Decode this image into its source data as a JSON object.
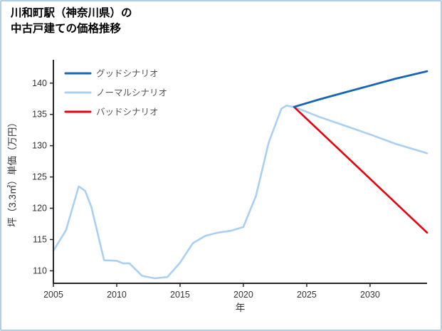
{
  "title": {
    "line1": "川和町駅（神奈川県）の",
    "line2": "中古戸建ての価格推移"
  },
  "chart_data": {
    "type": "line",
    "title": "川和町駅（神奈川県）の中古戸建ての価格推移",
    "xlabel": "年",
    "ylabel": "坪（3.3㎡）単価（万円）",
    "xlim": [
      2005,
      2034.5
    ],
    "ylim": [
      108,
      143.5
    ],
    "xticks": [
      2005,
      2010,
      2015,
      2020,
      2025,
      2030
    ],
    "yticks": [
      110,
      115,
      120,
      125,
      130,
      135,
      140
    ],
    "grid": false,
    "legend": {
      "position": "upper-left",
      "order": [
        "グッドシナリオ",
        "ノーマルシナリオ",
        "バッドシナリオ"
      ]
    },
    "axis_color": "#262626",
    "tick_label_color": "#333333",
    "legend_text_color": "#555555",
    "series": [
      {
        "name": "ノーマルシナリオ",
        "color": "#a9d0f3",
        "width": 2.6,
        "x": [
          2005,
          2006,
          2007,
          2007.5,
          2008,
          2009,
          2010,
          2010.5,
          2011,
          2012,
          2013,
          2014,
          2015,
          2016,
          2017,
          2018,
          2019,
          2020,
          2021,
          2022,
          2023,
          2023.4,
          2024,
          2026,
          2028,
          2030,
          2032,
          2034.5
        ],
        "y": [
          113.2,
          116.5,
          123.5,
          122.8,
          120.2,
          111.7,
          111.6,
          111.2,
          111.2,
          109.2,
          108.8,
          109.0,
          111.3,
          114.4,
          115.6,
          116.1,
          116.4,
          117.0,
          122.0,
          130.5,
          135.9,
          136.4,
          136.2,
          134.6,
          133.2,
          131.8,
          130.3,
          128.8
        ]
      },
      {
        "name": "バッドシナリオ",
        "color": "#e8000d",
        "width": 2.6,
        "x": [
          2024,
          2034.5
        ],
        "y": [
          136.2,
          116.1
        ]
      },
      {
        "name": "グッドシナリオ",
        "color": "#1766b5",
        "width": 2.8,
        "x": [
          2024,
          2026,
          2028,
          2030,
          2032,
          2034.5
        ],
        "y": [
          136.2,
          137.4,
          138.5,
          139.6,
          140.7,
          141.9
        ]
      }
    ]
  }
}
